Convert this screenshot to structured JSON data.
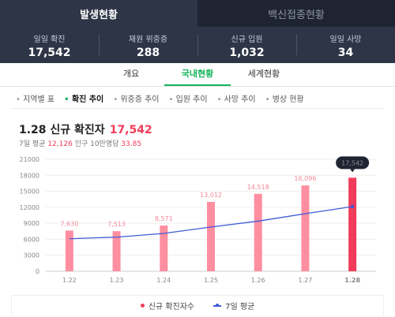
{
  "top_tabs": {
    "active": "발생현황",
    "inactive": "백신접종현황"
  },
  "stats": [
    {
      "label": "일일 확진",
      "value": "17,542"
    },
    {
      "label": "재원 위중증",
      "value": "288"
    },
    {
      "label": "신규 입원",
      "value": "1,032"
    },
    {
      "label": "일일 사망",
      "value": "34"
    }
  ],
  "subtabs": [
    "개요",
    "국내현황",
    "세계현황"
  ],
  "filters": [
    "지역별 표",
    "확진 추이",
    "위중증 추이",
    "입원 추이",
    "사망 추이",
    "병상 현황"
  ],
  "headline": {
    "date_text": "1.28 신규 확진자",
    "count": "17,542"
  },
  "sub": {
    "avg_label": "7일 평균",
    "avg_value": "12,126",
    "per_label": "인구 10만명당",
    "per_value": "33.85"
  },
  "legend": {
    "bars": "신규 확진자수",
    "line": "7일 평균"
  },
  "colors": {
    "accent_green": "#14b45a",
    "bar": "#ff8ea0",
    "bar_highlight": "#f03c5a",
    "avg_line": "#3d5bd9"
  },
  "chart_data": {
    "type": "bar",
    "categories": [
      "1.22",
      "1.23",
      "1.24",
      "1.25",
      "1.26",
      "1.27",
      "1.28"
    ],
    "series": [
      {
        "name": "신규 확진자수",
        "values": [
          7630,
          7513,
          8571,
          13012,
          14518,
          16096,
          17542
        ]
      },
      {
        "name": "7일 평균",
        "values": [
          6100,
          6400,
          7100,
          8300,
          9400,
          10800,
          12126
        ]
      }
    ],
    "data_labels": [
      "7,630",
      "7,513",
      "8,571",
      "13,012",
      "14,518",
      "16,096",
      "17,542"
    ],
    "y_ticks": [
      "0",
      "3000",
      "6000",
      "9000",
      "12000",
      "15000",
      "18000",
      "21000"
    ],
    "ylim": [
      0,
      21000
    ],
    "grid": true,
    "legend": "bottom"
  }
}
